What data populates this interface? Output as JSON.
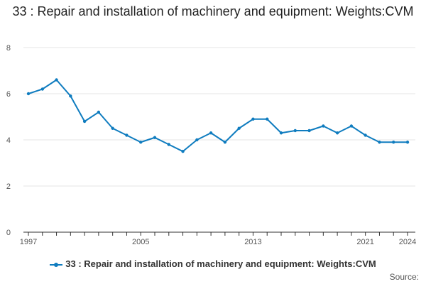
{
  "title": "33 : Repair and installation of machinery and equipment: Weights:CVM",
  "legend_label": "33 : Repair and installation of machinery and equipment: Weights:CVM",
  "source_label": "Source:",
  "colors": {
    "series": "#0f7cbf",
    "grid": "#e6e6e6",
    "axis": "#333333",
    "tick_text": "#555555"
  },
  "chart_data": {
    "type": "line",
    "title": "33 : Repair and installation of machinery and equipment: Weights:CVM",
    "xlabel": "",
    "ylabel": "",
    "x": [
      1997,
      1998,
      1999,
      2000,
      2001,
      2002,
      2003,
      2004,
      2005,
      2006,
      2007,
      2008,
      2009,
      2010,
      2011,
      2012,
      2013,
      2014,
      2015,
      2016,
      2017,
      2018,
      2019,
      2020,
      2021,
      2022,
      2023,
      2024
    ],
    "series": [
      {
        "name": "33 : Repair and installation of machinery and equipment: Weights:CVM",
        "values": [
          6.0,
          6.2,
          6.6,
          5.9,
          4.8,
          5.2,
          4.5,
          4.2,
          3.9,
          4.1,
          3.8,
          3.5,
          4.0,
          4.3,
          3.9,
          4.5,
          4.9,
          4.9,
          4.3,
          4.4,
          4.4,
          4.6,
          4.3,
          4.6,
          4.2,
          3.9,
          3.9,
          3.9
        ]
      }
    ],
    "xlim": [
      1997,
      2024
    ],
    "ylim": [
      0,
      8
    ],
    "yticks": [
      0,
      2,
      4,
      6,
      8
    ],
    "xtick_labels": [
      "1997",
      "2005",
      "2013",
      "2021",
      "2024"
    ],
    "legend_position": "bottom",
    "grid": true
  }
}
